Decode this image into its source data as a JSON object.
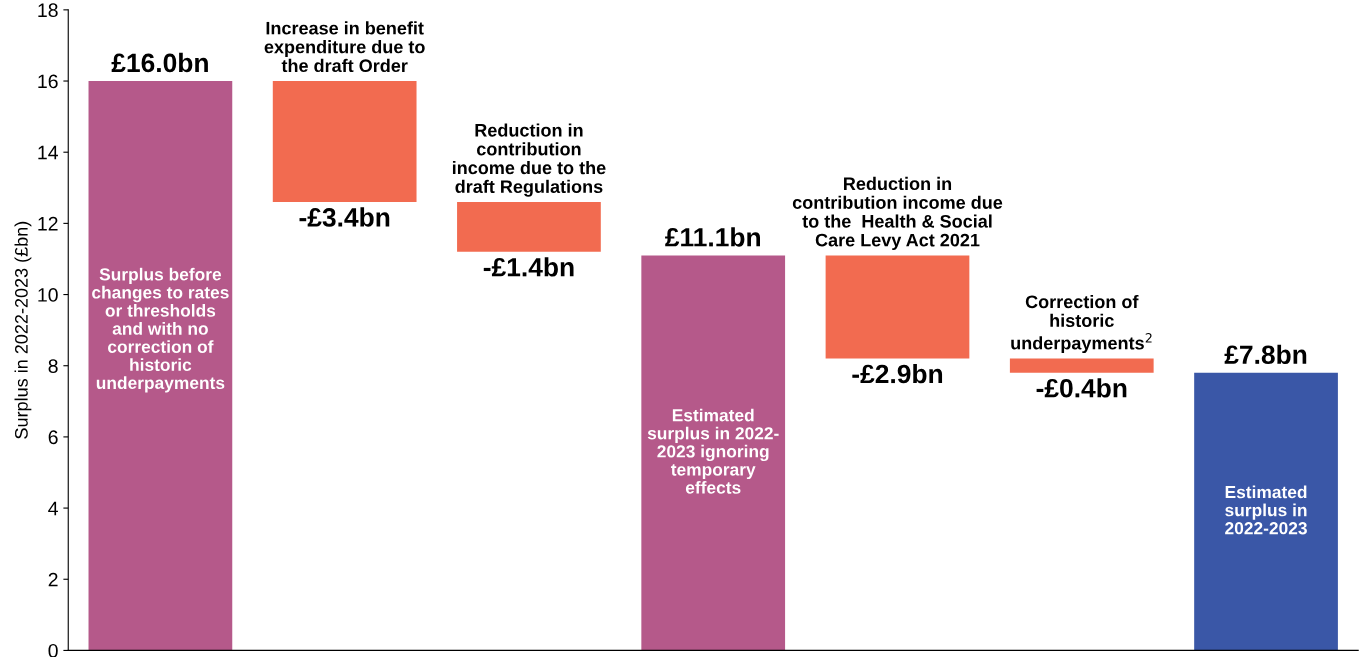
{
  "chart_data": {
    "type": "bar",
    "ylabel": "Surplus in 2022-2023 (£bn)",
    "categories": [
      "Surplus before\nchanges to rates\nor thresholds\nand with no\ncorrection of\nhistoric\nunderpayments",
      "Increase in benefit\nexpenditure due to\nthe draft Order",
      "Reduction in\ncontribution\nincome due to the\ndraft Regulations",
      "Estimated\nsurplus in 2022-\n2023 ignoring\ntemporary\neffects",
      "Reduction in\ncontribution income due\nto the  Health & Social\nCare Levy Act 2021",
      "Correction of\nhistoric\nunderpayments$^{2}$",
      "Estimated\nsurplus in\n2022-2023"
    ],
    "values": [
      16.0,
      -3.4,
      -1.4,
      11.1,
      -2.9,
      -0.4,
      7.8
    ],
    "base": [
      0,
      16.0,
      12.6,
      0,
      11.1,
      8.2,
      0
    ],
    "colors": [
      "#b5598a",
      "#f26b50",
      "#f26b50",
      "#b5598a",
      "#f26b50",
      "#f26b50",
      "#3a57a7"
    ],
    "value_labels": [
      "£16.0bn",
      "-£3.4bn",
      "-£1.4bn",
      "£11.1bn",
      "-£2.9bn",
      "-£0.4bn",
      "£7.8bn"
    ],
    "ylim": [
      0,
      18
    ],
    "yticks": [
      0,
      2,
      4,
      6,
      8,
      10,
      12,
      14,
      16,
      18
    ],
    "grid": false
  }
}
